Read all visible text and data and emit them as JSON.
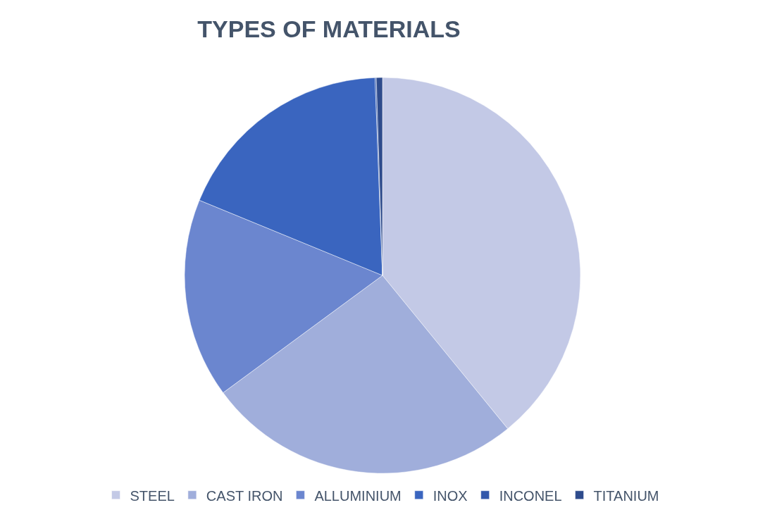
{
  "chart_data": {
    "type": "pie",
    "title": "TYPES OF MATERIALS",
    "categories": [
      "STEEL",
      "CAST IRON",
      "ALLUMINIUM",
      "INOX",
      "INCONEL",
      "TITANIUM"
    ],
    "values": [
      39.1,
      25.8,
      16.3,
      18.2,
      0.1,
      0.5
    ],
    "colors": [
      "#c3c9e6",
      "#a0aedb",
      "#6b86cf",
      "#3a65bf",
      "#3157ab",
      "#2e4b8c"
    ],
    "legend": "bottom"
  }
}
